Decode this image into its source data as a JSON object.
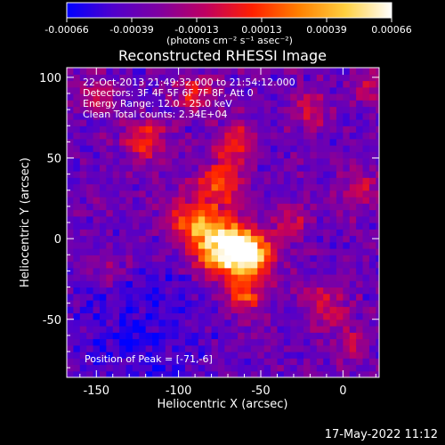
{
  "chart_data": {
    "type": "heatmap",
    "title": "Reconstructed RHESSI Image",
    "xlabel": "Heliocentric X (arcsec)",
    "ylabel": "Heliocentric Y (arcsec)",
    "xlim": [
      -168,
      22
    ],
    "ylim": [
      -86,
      106
    ],
    "xticks": [
      -150,
      -100,
      -50,
      0
    ],
    "yticks": [
      -50,
      0,
      50,
      100
    ],
    "colorbar": {
      "min": -0.00066,
      "max": 0.00066,
      "ticks": [
        "-0.00066",
        "-0.00039",
        "-0.00013",
        "0.00013",
        "0.00039",
        "0.00066"
      ],
      "units": "(photons cm⁻² s⁻¹ asec⁻²)",
      "colors": [
        "#0000ff",
        "#5000cc",
        "#8000a0",
        "#c00060",
        "#ff2000",
        "#ff8000",
        "#ffd040",
        "#ffffff"
      ]
    },
    "annotations": [
      "22-Oct-2013 21:49:32.000 to 21:54:12.000",
      "Detectors: 3F 4F 5F 6F 7F 8F, Att 0",
      "Energy Range: 12.0 - 25.0 keV",
      "Clean    Total counts: 2.34E+04"
    ],
    "peak_label": "Position of Peak = [-71,-6]",
    "peak": [
      -71,
      -6
    ],
    "sources": [
      {
        "x": -71,
        "y": -6,
        "amp": 1.0,
        "w": 12
      },
      {
        "x": -55,
        "y": -10,
        "amp": 0.7,
        "w": 10
      },
      {
        "x": -90,
        "y": 10,
        "amp": 0.6,
        "w": 11
      },
      {
        "x": -75,
        "y": 35,
        "amp": 0.55,
        "w": 9
      },
      {
        "x": -65,
        "y": 60,
        "amp": 0.45,
        "w": 8
      },
      {
        "x": -120,
        "y": 62,
        "amp": 0.45,
        "w": 9
      },
      {
        "x": -90,
        "y": 90,
        "amp": 0.4,
        "w": 8
      },
      {
        "x": -20,
        "y": 80,
        "amp": 0.35,
        "w": 8
      },
      {
        "x": 10,
        "y": 30,
        "amp": 0.35,
        "w": 8
      },
      {
        "x": -10,
        "y": -40,
        "amp": 0.35,
        "w": 9
      },
      {
        "x": -60,
        "y": -35,
        "amp": 0.45,
        "w": 8
      },
      {
        "x": 5,
        "y": -65,
        "amp": 0.3,
        "w": 7
      },
      {
        "x": -150,
        "y": 90,
        "amp": 0.3,
        "w": 8
      },
      {
        "x": -140,
        "y": -20,
        "amp": 0.25,
        "w": 7
      },
      {
        "x": -30,
        "y": 10,
        "amp": 0.3,
        "w": 7
      },
      {
        "x": 15,
        "y": 95,
        "amp": 0.3,
        "w": 7
      }
    ]
  },
  "footer": {
    "timestamp": "17-May-2022 11:12"
  }
}
